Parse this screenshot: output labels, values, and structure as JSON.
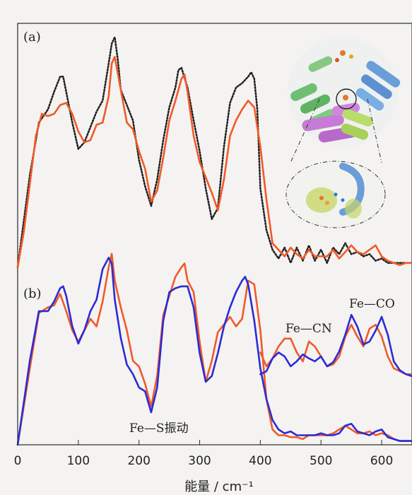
{
  "chart_data": [
    {
      "panel": "a",
      "panel_label": "(a)",
      "type": "line",
      "xlim": [
        0,
        650
      ],
      "series": [
        {
          "name": "",
          "color": "#222222",
          "style": "dotted",
          "x": [
            0,
            20,
            35,
            50,
            60,
            70,
            75,
            80,
            90,
            100,
            110,
            120,
            130,
            140,
            150,
            155,
            160,
            165,
            170,
            180,
            190,
            200,
            210,
            220,
            230,
            240,
            250,
            260,
            265,
            270,
            280,
            290,
            300,
            310,
            320,
            330,
            340,
            350,
            360,
            370,
            380,
            385,
            390,
            395,
            400,
            410,
            420,
            430,
            440,
            450,
            460,
            470,
            480,
            490,
            500,
            510,
            520,
            530,
            540,
            550,
            560,
            570,
            580,
            590,
            600,
            610,
            620,
            630,
            640,
            650
          ],
          "y": [
            0.0,
            0.42,
            0.66,
            0.72,
            0.8,
            0.87,
            0.87,
            0.8,
            0.66,
            0.54,
            0.57,
            0.64,
            0.71,
            0.76,
            0.93,
            1.02,
            1.05,
            0.95,
            0.81,
            0.74,
            0.67,
            0.49,
            0.37,
            0.28,
            0.4,
            0.58,
            0.73,
            0.82,
            0.9,
            0.91,
            0.82,
            0.67,
            0.53,
            0.36,
            0.22,
            0.27,
            0.55,
            0.75,
            0.82,
            0.84,
            0.87,
            0.89,
            0.86,
            0.72,
            0.36,
            0.17,
            0.08,
            0.04,
            0.09,
            0.02,
            0.09,
            0.03,
            0.1,
            0.03,
            0.08,
            0.02,
            0.09,
            0.06,
            0.11,
            0.06,
            0.07,
            0.05,
            0.06,
            0.03,
            0.04,
            0.02,
            0.02,
            0.02,
            0.02,
            0.02
          ]
        },
        {
          "name": "",
          "color": "#f05a28",
          "style": "solid",
          "x": [
            0,
            10,
            20,
            30,
            40,
            50,
            60,
            70,
            80,
            90,
            100,
            110,
            120,
            130,
            140,
            150,
            155,
            160,
            170,
            180,
            190,
            200,
            210,
            220,
            230,
            240,
            250,
            260,
            270,
            275,
            280,
            290,
            300,
            310,
            320,
            330,
            340,
            350,
            360,
            370,
            380,
            390,
            400,
            410,
            420,
            430,
            440,
            450,
            460,
            470,
            480,
            490,
            500,
            510,
            520,
            530,
            540,
            550,
            560,
            570,
            580,
            590,
            600,
            610,
            620,
            630,
            640,
            650
          ],
          "y": [
            0.0,
            0.16,
            0.38,
            0.6,
            0.7,
            0.69,
            0.7,
            0.74,
            0.75,
            0.7,
            0.62,
            0.57,
            0.58,
            0.65,
            0.66,
            0.78,
            0.93,
            0.96,
            0.81,
            0.66,
            0.63,
            0.53,
            0.45,
            0.3,
            0.35,
            0.5,
            0.67,
            0.76,
            0.86,
            0.88,
            0.8,
            0.6,
            0.48,
            0.41,
            0.34,
            0.26,
            0.4,
            0.6,
            0.67,
            0.72,
            0.76,
            0.73,
            0.55,
            0.31,
            0.11,
            0.08,
            0.05,
            0.09,
            0.06,
            0.04,
            0.08,
            0.05,
            0.05,
            0.05,
            0.08,
            0.04,
            0.07,
            0.1,
            0.07,
            0.06,
            0.08,
            0.1,
            0.05,
            0.03,
            0.02,
            0.01,
            0.02,
            0.02
          ]
        }
      ]
    },
    {
      "panel": "b",
      "panel_label": "(b)",
      "type": "line",
      "xlim": [
        0,
        650
      ],
      "xticks": [
        0,
        100,
        200,
        300,
        400,
        500,
        600
      ],
      "xlabel": "能量 / cm⁻¹",
      "series": [
        {
          "name": "",
          "color": "#f05a28",
          "style": "solid",
          "x": [
            0,
            20,
            35,
            50,
            60,
            70,
            80,
            90,
            100,
            110,
            120,
            130,
            140,
            150,
            155,
            160,
            170,
            180,
            190,
            200,
            210,
            220,
            230,
            240,
            250,
            260,
            270,
            275,
            280,
            290,
            300,
            310,
            320,
            330,
            340,
            350,
            360,
            370,
            380,
            390,
            400,
            410,
            420,
            430,
            440,
            450,
            460,
            470,
            480,
            490,
            500,
            510,
            520,
            530,
            540,
            550,
            560,
            570,
            580,
            590,
            600,
            610,
            620,
            630,
            640,
            650
          ],
          "y": [
            0.0,
            0.4,
            0.69,
            0.72,
            0.73,
            0.79,
            0.7,
            0.6,
            0.54,
            0.6,
            0.66,
            0.62,
            0.75,
            0.93,
            1.0,
            0.86,
            0.72,
            0.6,
            0.44,
            0.41,
            0.32,
            0.2,
            0.36,
            0.68,
            0.78,
            0.88,
            0.93,
            0.95,
            0.86,
            0.8,
            0.54,
            0.33,
            0.44,
            0.59,
            0.63,
            0.67,
            0.62,
            0.66,
            0.86,
            0.84,
            0.6,
            0.24,
            0.08,
            0.05,
            0.05,
            0.04,
            0.04,
            0.03,
            0.05,
            0.05,
            0.05,
            0.05,
            0.06,
            0.08,
            0.1,
            0.08,
            0.06,
            0.06,
            0.07,
            0.05,
            0.06,
            0.05,
            0.03,
            0.02,
            0.02,
            0.02
          ]
        },
        {
          "name": "",
          "color": "#2b2bd6",
          "style": "solid",
          "x": [
            0,
            20,
            35,
            50,
            60,
            70,
            75,
            80,
            90,
            100,
            110,
            120,
            130,
            140,
            150,
            155,
            160,
            170,
            180,
            190,
            200,
            210,
            220,
            230,
            240,
            250,
            260,
            270,
            280,
            290,
            300,
            310,
            320,
            330,
            340,
            350,
            360,
            370,
            375,
            380,
            390,
            400,
            410,
            420,
            430,
            440,
            450,
            460,
            470,
            480,
            490,
            500,
            510,
            520,
            530,
            540,
            550,
            560,
            570,
            580,
            590,
            600,
            610,
            620,
            630,
            640,
            650
          ],
          "y": [
            0.0,
            0.44,
            0.7,
            0.7,
            0.75,
            0.82,
            0.83,
            0.78,
            0.62,
            0.53,
            0.6,
            0.7,
            0.76,
            0.92,
            0.98,
            0.95,
            0.76,
            0.56,
            0.42,
            0.37,
            0.3,
            0.28,
            0.17,
            0.3,
            0.65,
            0.8,
            0.82,
            0.83,
            0.83,
            0.72,
            0.48,
            0.33,
            0.36,
            0.48,
            0.62,
            0.72,
            0.8,
            0.86,
            0.88,
            0.84,
            0.65,
            0.4,
            0.24,
            0.13,
            0.08,
            0.06,
            0.07,
            0.05,
            0.05,
            0.05,
            0.05,
            0.06,
            0.05,
            0.05,
            0.06,
            0.1,
            0.11,
            0.07,
            0.06,
            0.05,
            0.07,
            0.08,
            0.04,
            0.03,
            0.02,
            0.02,
            0.02
          ]
        }
      ],
      "insets": [
        {
          "label": "Fe—CN",
          "x": [
            400,
            410,
            420,
            430,
            440,
            450,
            460,
            470,
            480,
            490,
            500,
            510,
            520
          ],
          "red": [
            0.44,
            0.3,
            0.38,
            0.5,
            0.58,
            0.58,
            0.44,
            0.35,
            0.55,
            0.5,
            0.4,
            0.3,
            0.32
          ],
          "blue": [
            0.22,
            0.25,
            0.38,
            0.44,
            0.4,
            0.3,
            0.35,
            0.42,
            0.38,
            0.35,
            0.4,
            0.3,
            0.34
          ]
        },
        {
          "label": "Fe—CO",
          "x": [
            520,
            530,
            540,
            550,
            560,
            570,
            580,
            590,
            600,
            610,
            620,
            630,
            640,
            650
          ],
          "red": [
            0.32,
            0.4,
            0.6,
            0.72,
            0.6,
            0.5,
            0.68,
            0.72,
            0.6,
            0.4,
            0.28,
            0.25,
            0.22,
            0.22
          ],
          "blue": [
            0.34,
            0.45,
            0.62,
            0.82,
            0.7,
            0.52,
            0.55,
            0.66,
            0.8,
            0.62,
            0.35,
            0.26,
            0.22,
            0.2
          ]
        }
      ],
      "annotation": "Fe—S振动"
    }
  ],
  "colors": {
    "black_series": "#222222",
    "red_series": "#f05a28",
    "blue_series": "#2b2bd6"
  }
}
